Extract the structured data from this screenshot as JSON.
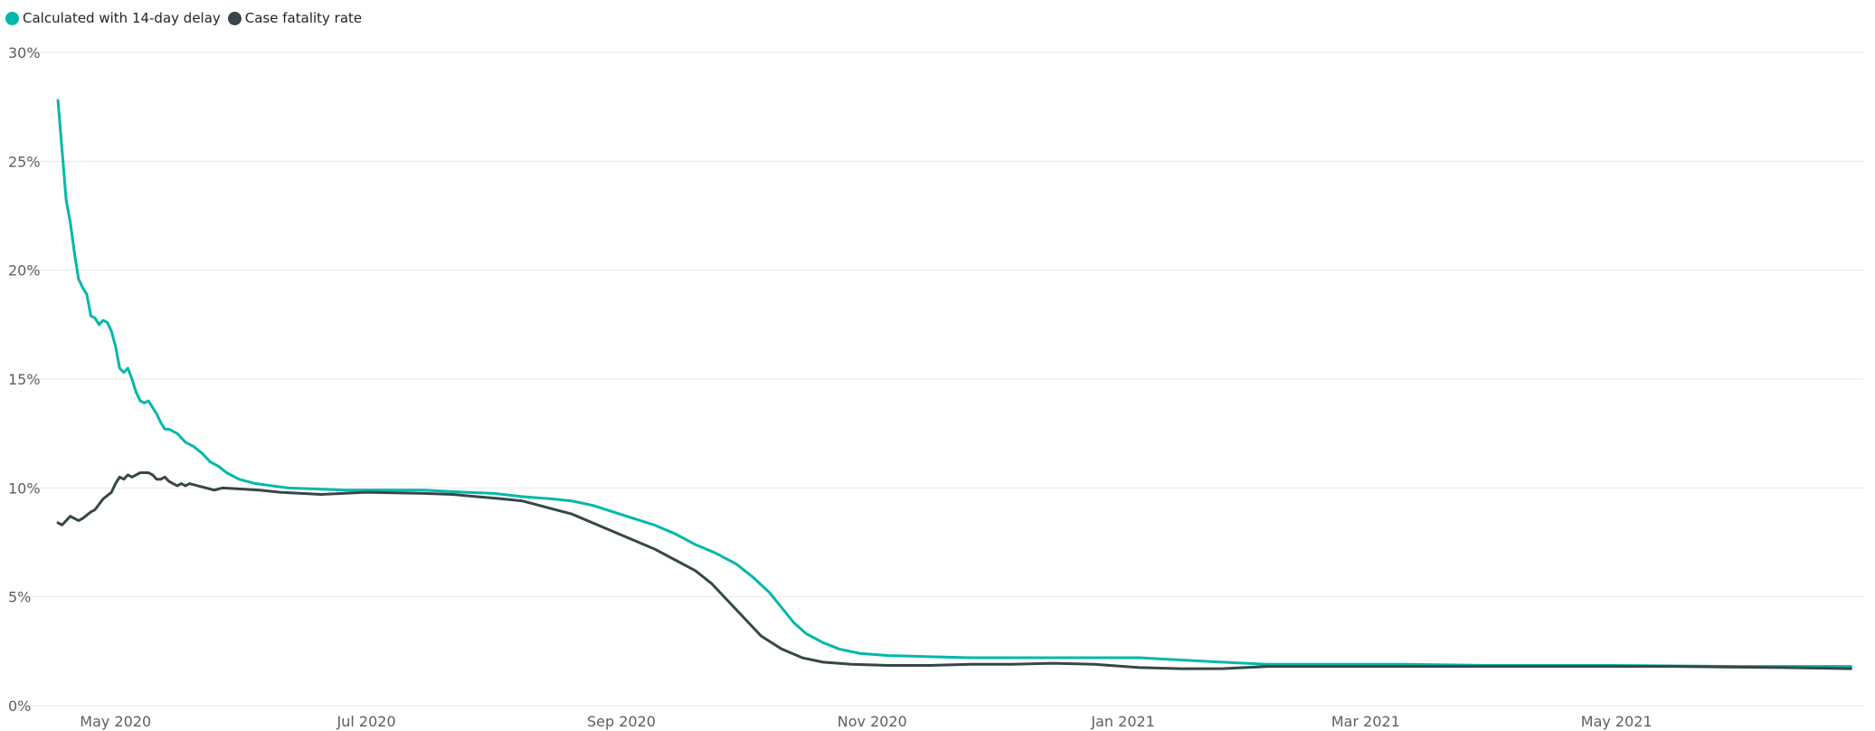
{
  "colors": {
    "series_delay": "#01b8aa",
    "series_cfr": "#374649",
    "grid": "#eaeaea",
    "tick_text": "#605e5c"
  },
  "legend": {
    "items": [
      {
        "label": "Calculated with 14-day delay",
        "color": "#01b8aa",
        "icon": "circle-marker-icon"
      },
      {
        "label": "Case fatality rate",
        "color": "#374649",
        "icon": "circle-marker-icon"
      }
    ]
  },
  "chart_data": {
    "type": "line",
    "title": "",
    "xlabel": "",
    "ylabel": "",
    "legend_position": "top-left",
    "grid": "horizontal",
    "ylim": [
      0,
      30
    ],
    "xlim": [
      "2020-04-15",
      "2021-06-30"
    ],
    "y_ticks": [
      {
        "value": 0,
        "label": "0%"
      },
      {
        "value": 5,
        "label": "5%"
      },
      {
        "value": 10,
        "label": "10%"
      },
      {
        "value": 15,
        "label": "15%"
      },
      {
        "value": 20,
        "label": "20%"
      },
      {
        "value": 25,
        "label": "25%"
      },
      {
        "value": 30,
        "label": "30%"
      }
    ],
    "x_ticks": [
      {
        "date": "2020-05-01",
        "label": "May 2020"
      },
      {
        "date": "2020-07-01",
        "label": "Jul 2020"
      },
      {
        "date": "2020-09-01",
        "label": "Sep 2020"
      },
      {
        "date": "2020-11-01",
        "label": "Nov 2020"
      },
      {
        "date": "2021-01-01",
        "label": "Jan 2021"
      },
      {
        "date": "2021-03-01",
        "label": "Mar 2021"
      },
      {
        "date": "2021-05-01",
        "label": "May 2021"
      }
    ],
    "series": [
      {
        "name": "Calculated with 14-day delay",
        "color": "#01b8aa",
        "points": [
          [
            "2020-04-17",
            27.8
          ],
          [
            "2020-04-18",
            25.5
          ],
          [
            "2020-04-19",
            23.2
          ],
          [
            "2020-04-20",
            22.2
          ],
          [
            "2020-04-21",
            20.8
          ],
          [
            "2020-04-22",
            19.6
          ],
          [
            "2020-04-23",
            19.2
          ],
          [
            "2020-04-24",
            18.9
          ],
          [
            "2020-04-25",
            17.9
          ],
          [
            "2020-04-26",
            17.8
          ],
          [
            "2020-04-27",
            17.5
          ],
          [
            "2020-04-28",
            17.7
          ],
          [
            "2020-04-29",
            17.6
          ],
          [
            "2020-04-30",
            17.2
          ],
          [
            "2020-05-01",
            16.5
          ],
          [
            "2020-05-02",
            15.5
          ],
          [
            "2020-05-03",
            15.3
          ],
          [
            "2020-05-04",
            15.5
          ],
          [
            "2020-05-05",
            15.0
          ],
          [
            "2020-05-06",
            14.4
          ],
          [
            "2020-05-07",
            14.0
          ],
          [
            "2020-05-08",
            13.9
          ],
          [
            "2020-05-09",
            14.0
          ],
          [
            "2020-05-10",
            13.7
          ],
          [
            "2020-05-11",
            13.4
          ],
          [
            "2020-05-12",
            13.0
          ],
          [
            "2020-05-13",
            12.7
          ],
          [
            "2020-05-14",
            12.7
          ],
          [
            "2020-05-16",
            12.5
          ],
          [
            "2020-05-18",
            12.1
          ],
          [
            "2020-05-20",
            11.9
          ],
          [
            "2020-05-22",
            11.6
          ],
          [
            "2020-05-24",
            11.2
          ],
          [
            "2020-05-26",
            11.0
          ],
          [
            "2020-05-28",
            10.7
          ],
          [
            "2020-05-31",
            10.4
          ],
          [
            "2020-06-04",
            10.2
          ],
          [
            "2020-06-08",
            10.1
          ],
          [
            "2020-06-12",
            10.0
          ],
          [
            "2020-06-19",
            9.95
          ],
          [
            "2020-06-26",
            9.9
          ],
          [
            "2020-07-05",
            9.9
          ],
          [
            "2020-07-15",
            9.9
          ],
          [
            "2020-07-25",
            9.8
          ],
          [
            "2020-08-01",
            9.75
          ],
          [
            "2020-08-08",
            9.6
          ],
          [
            "2020-08-15",
            9.5
          ],
          [
            "2020-08-20",
            9.4
          ],
          [
            "2020-08-25",
            9.2
          ],
          [
            "2020-08-30",
            8.9
          ],
          [
            "2020-09-04",
            8.6
          ],
          [
            "2020-09-09",
            8.3
          ],
          [
            "2020-09-14",
            7.9
          ],
          [
            "2020-09-19",
            7.4
          ],
          [
            "2020-09-24",
            7.0
          ],
          [
            "2020-09-29",
            6.5
          ],
          [
            "2020-10-03",
            5.9
          ],
          [
            "2020-10-07",
            5.2
          ],
          [
            "2020-10-10",
            4.5
          ],
          [
            "2020-10-13",
            3.8
          ],
          [
            "2020-10-16",
            3.3
          ],
          [
            "2020-10-20",
            2.9
          ],
          [
            "2020-10-24",
            2.6
          ],
          [
            "2020-10-29",
            2.4
          ],
          [
            "2020-11-05",
            2.3
          ],
          [
            "2020-11-15",
            2.25
          ],
          [
            "2020-11-25",
            2.2
          ],
          [
            "2020-12-05",
            2.2
          ],
          [
            "2020-12-15",
            2.2
          ],
          [
            "2020-12-25",
            2.2
          ],
          [
            "2021-01-05",
            2.2
          ],
          [
            "2021-01-15",
            2.1
          ],
          [
            "2021-01-25",
            2.0
          ],
          [
            "2021-02-05",
            1.9
          ],
          [
            "2021-02-20",
            1.9
          ],
          [
            "2021-03-10",
            1.9
          ],
          [
            "2021-03-31",
            1.85
          ],
          [
            "2021-04-30",
            1.85
          ],
          [
            "2021-05-31",
            1.8
          ],
          [
            "2021-06-27",
            1.8
          ]
        ]
      },
      {
        "name": "Case fatality rate",
        "color": "#374649",
        "points": [
          [
            "2020-04-17",
            8.4
          ],
          [
            "2020-04-18",
            8.3
          ],
          [
            "2020-04-20",
            8.7
          ],
          [
            "2020-04-21",
            8.6
          ],
          [
            "2020-04-22",
            8.5
          ],
          [
            "2020-04-23",
            8.6
          ],
          [
            "2020-04-25",
            8.9
          ],
          [
            "2020-04-26",
            9.0
          ],
          [
            "2020-04-28",
            9.5
          ],
          [
            "2020-04-30",
            9.8
          ],
          [
            "2020-05-01",
            10.2
          ],
          [
            "2020-05-02",
            10.5
          ],
          [
            "2020-05-03",
            10.4
          ],
          [
            "2020-05-04",
            10.6
          ],
          [
            "2020-05-05",
            10.5
          ],
          [
            "2020-05-06",
            10.6
          ],
          [
            "2020-05-07",
            10.7
          ],
          [
            "2020-05-09",
            10.7
          ],
          [
            "2020-05-10",
            10.6
          ],
          [
            "2020-05-11",
            10.4
          ],
          [
            "2020-05-12",
            10.4
          ],
          [
            "2020-05-13",
            10.5
          ],
          [
            "2020-05-14",
            10.3
          ],
          [
            "2020-05-15",
            10.2
          ],
          [
            "2020-05-16",
            10.1
          ],
          [
            "2020-05-17",
            10.2
          ],
          [
            "2020-05-18",
            10.1
          ],
          [
            "2020-05-19",
            10.2
          ],
          [
            "2020-05-21",
            10.1
          ],
          [
            "2020-05-23",
            10.0
          ],
          [
            "2020-05-25",
            9.9
          ],
          [
            "2020-05-27",
            10.0
          ],
          [
            "2020-06-05",
            9.9
          ],
          [
            "2020-06-10",
            9.8
          ],
          [
            "2020-06-20",
            9.7
          ],
          [
            "2020-07-01",
            9.8
          ],
          [
            "2020-07-15",
            9.75
          ],
          [
            "2020-07-22",
            9.7
          ],
          [
            "2020-07-28",
            9.6
          ],
          [
            "2020-08-03",
            9.5
          ],
          [
            "2020-08-08",
            9.4
          ],
          [
            "2020-08-12",
            9.2
          ],
          [
            "2020-08-16",
            9.0
          ],
          [
            "2020-08-20",
            8.8
          ],
          [
            "2020-08-25",
            8.4
          ],
          [
            "2020-08-30",
            8.0
          ],
          [
            "2020-09-04",
            7.6
          ],
          [
            "2020-09-09",
            7.2
          ],
          [
            "2020-09-14",
            6.7
          ],
          [
            "2020-09-19",
            6.2
          ],
          [
            "2020-09-23",
            5.6
          ],
          [
            "2020-09-27",
            4.8
          ],
          [
            "2020-10-01",
            4.0
          ],
          [
            "2020-10-05",
            3.2
          ],
          [
            "2020-10-10",
            2.6
          ],
          [
            "2020-10-15",
            2.2
          ],
          [
            "2020-10-20",
            2.0
          ],
          [
            "2020-10-27",
            1.9
          ],
          [
            "2020-11-05",
            1.85
          ],
          [
            "2020-11-15",
            1.85
          ],
          [
            "2020-11-25",
            1.9
          ],
          [
            "2020-12-05",
            1.9
          ],
          [
            "2020-12-15",
            1.95
          ],
          [
            "2020-12-25",
            1.9
          ],
          [
            "2021-01-05",
            1.75
          ],
          [
            "2021-01-15",
            1.7
          ],
          [
            "2021-01-25",
            1.7
          ],
          [
            "2021-02-05",
            1.8
          ],
          [
            "2021-02-20",
            1.8
          ],
          [
            "2021-03-15",
            1.8
          ],
          [
            "2021-04-15",
            1.8
          ],
          [
            "2021-05-15",
            1.8
          ],
          [
            "2021-06-10",
            1.75
          ],
          [
            "2021-06-27",
            1.7
          ]
        ]
      }
    ]
  }
}
